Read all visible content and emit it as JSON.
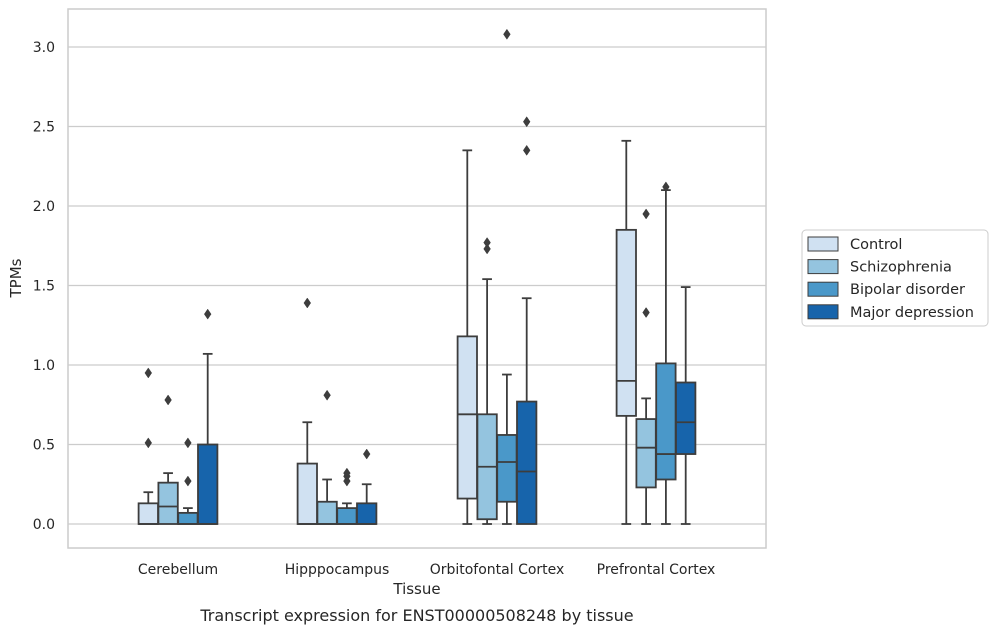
{
  "caption": "Transcript expression for ENST00000508248 by tissue",
  "chart_data": {
    "type": "box",
    "xlabel": "Tissue",
    "ylabel": "TPMs",
    "ylim": [
      -0.15,
      3.25
    ],
    "yticks": [
      "0.0",
      "0.5",
      "1.0",
      "1.5",
      "2.0",
      "2.5",
      "3.0"
    ],
    "grid": "horizontal",
    "legend_position": "right",
    "categories": [
      "Cerebellum",
      "Hipppocampus",
      "Orbitofontal Cortex",
      "Prefrontal Cortex"
    ],
    "series": [
      {
        "name": "Control",
        "color": "#d0e1f2",
        "boxes": [
          {
            "q1": 0.0,
            "median": 0.0,
            "q3": 0.13,
            "whisker_low": 0.0,
            "whisker_high": 0.2,
            "outliers": [
              0.51,
              0.95
            ]
          },
          {
            "q1": 0.0,
            "median": 0.0,
            "q3": 0.38,
            "whisker_low": 0.0,
            "whisker_high": 0.64,
            "outliers": [
              1.39
            ]
          },
          {
            "q1": 0.16,
            "median": 0.69,
            "q3": 1.18,
            "whisker_low": 0.0,
            "whisker_high": 2.35,
            "outliers": []
          },
          {
            "q1": 0.68,
            "median": 0.9,
            "q3": 1.85,
            "whisker_low": 0.0,
            "whisker_high": 2.41,
            "outliers": []
          }
        ]
      },
      {
        "name": "Schizophrenia",
        "color": "#94c4df",
        "boxes": [
          {
            "q1": 0.0,
            "median": 0.11,
            "q3": 0.26,
            "whisker_low": 0.0,
            "whisker_high": 0.32,
            "outliers": [
              0.78
            ]
          },
          {
            "q1": 0.0,
            "median": 0.0,
            "q3": 0.14,
            "whisker_low": 0.0,
            "whisker_high": 0.28,
            "outliers": [
              0.81
            ]
          },
          {
            "q1": 0.03,
            "median": 0.36,
            "q3": 0.69,
            "whisker_low": 0.0,
            "whisker_high": 1.54,
            "outliers": [
              1.73,
              1.77
            ]
          },
          {
            "q1": 0.23,
            "median": 0.48,
            "q3": 0.66,
            "whisker_low": 0.0,
            "whisker_high": 0.79,
            "outliers": [
              1.33,
              1.95
            ]
          }
        ]
      },
      {
        "name": "Bipolar disorder",
        "color": "#4a98c9",
        "boxes": [
          {
            "q1": 0.0,
            "median": 0.0,
            "q3": 0.07,
            "whisker_low": 0.0,
            "whisker_high": 0.1,
            "outliers": [
              0.27,
              0.51
            ]
          },
          {
            "q1": 0.0,
            "median": 0.0,
            "q3": 0.1,
            "whisker_low": 0.0,
            "whisker_high": 0.13,
            "outliers": [
              0.27,
              0.3,
              0.32
            ]
          },
          {
            "q1": 0.14,
            "median": 0.39,
            "q3": 0.56,
            "whisker_low": 0.0,
            "whisker_high": 0.94,
            "outliers": [
              3.08
            ]
          },
          {
            "q1": 0.28,
            "median": 0.44,
            "q3": 1.01,
            "whisker_low": 0.0,
            "whisker_high": 2.1,
            "outliers": [
              2.12
            ]
          }
        ]
      },
      {
        "name": "Major depression",
        "color": "#1764ab",
        "boxes": [
          {
            "q1": 0.0,
            "median": 0.0,
            "q3": 0.5,
            "whisker_low": 0.0,
            "whisker_high": 1.07,
            "outliers": [
              1.32
            ]
          },
          {
            "q1": 0.0,
            "median": 0.0,
            "q3": 0.13,
            "whisker_low": 0.0,
            "whisker_high": 0.25,
            "outliers": [
              0.44
            ]
          },
          {
            "q1": 0.0,
            "median": 0.33,
            "q3": 0.77,
            "whisker_low": 0.0,
            "whisker_high": 1.42,
            "outliers": [
              2.35,
              2.53
            ]
          },
          {
            "q1": 0.44,
            "median": 0.64,
            "q3": 0.89,
            "whisker_low": 0.0,
            "whisker_high": 1.49,
            "outliers": []
          }
        ]
      }
    ]
  }
}
